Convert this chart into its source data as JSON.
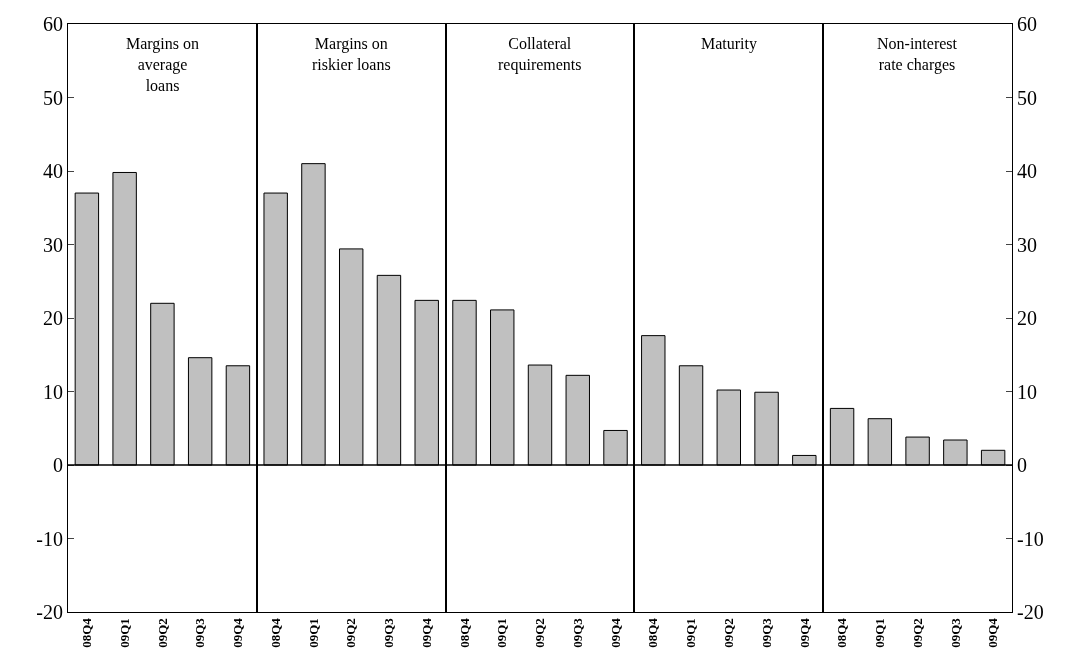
{
  "chart_data": [
    {
      "type": "bar",
      "title": "Margins on\naverage\nloans",
      "categories": [
        "08Q4",
        "09Q1",
        "09Q2",
        "09Q3",
        "09Q4"
      ],
      "series": [
        {
          "color": "#c0c0c0",
          "values": [
            37,
            39.8,
            22,
            14.6,
            13.5
          ]
        }
      ],
      "ylim": [
        -20,
        60
      ],
      "yticks": [
        -20,
        -10,
        0,
        10,
        20,
        30,
        40,
        50,
        60
      ],
      "ref_lines": [
        {
          "axis": "y",
          "value": 0,
          "color": "#000000"
        }
      ],
      "grid": false
    },
    {
      "type": "bar",
      "title": "Margins on\nriskier loans",
      "categories": [
        "08Q4",
        "09Q1",
        "09Q2",
        "09Q3",
        "09Q4"
      ],
      "series": [
        {
          "color": "#c0c0c0",
          "values": [
            37,
            41,
            29.4,
            25.8,
            22.4
          ]
        }
      ],
      "ylim": [
        -20,
        60
      ],
      "tick_labels": "x",
      "ref_lines": [
        {
          "axis": "y",
          "value": 0,
          "color": "#000000"
        }
      ],
      "grid": false
    },
    {
      "type": "bar",
      "title": "Collateral\nrequirements",
      "categories": [
        "08Q4",
        "09Q1",
        "09Q2",
        "09Q3",
        "09Q4"
      ],
      "series": [
        {
          "color": "#c0c0c0",
          "values": [
            22.4,
            21.1,
            13.6,
            12.2,
            4.7
          ]
        }
      ],
      "ylim": [
        -20,
        60
      ],
      "tick_labels": "x",
      "ref_lines": [
        {
          "axis": "y",
          "value": 0,
          "color": "#000000"
        }
      ],
      "grid": false
    },
    {
      "type": "bar",
      "title": "Maturity",
      "categories": [
        "08Q4",
        "09Q1",
        "09Q2",
        "09Q3",
        "09Q4"
      ],
      "series": [
        {
          "color": "#c0c0c0",
          "values": [
            17.6,
            13.5,
            10.2,
            9.9,
            1.3
          ]
        }
      ],
      "ylim": [
        -20,
        60
      ],
      "tick_labels": "x",
      "ref_lines": [
        {
          "axis": "y",
          "value": 0,
          "color": "#000000"
        }
      ],
      "grid": false
    },
    {
      "type": "bar",
      "title": "Non-interest\nrate charges",
      "categories": [
        "08Q4",
        "09Q1",
        "09Q2",
        "09Q3",
        "09Q4"
      ],
      "series": [
        {
          "color": "#c0c0c0",
          "values": [
            7.7,
            6.3,
            3.8,
            3.4,
            2.0
          ],
          "axis": "y2"
        }
      ],
      "y2lim": [
        -20,
        60
      ],
      "y2ticks": [
        -20,
        -10,
        0,
        10,
        20,
        30,
        40,
        50,
        60
      ],
      "ref_lines": [
        {
          "axis": "y2",
          "value": 0,
          "color": "#000000"
        }
      ],
      "grid": false
    }
  ]
}
